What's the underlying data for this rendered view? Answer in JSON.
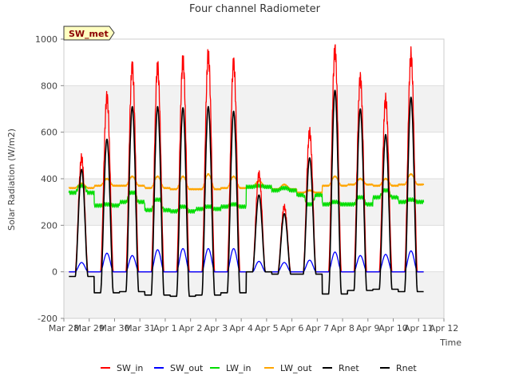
{
  "chart_data": {
    "type": "line",
    "title": "Four channel Radiometer",
    "xlabel": "Time",
    "ylabel": "Solar Radiation (W/m2)",
    "badge": "SW_met",
    "x_ticks": [
      "Mar 28",
      "Mar 29",
      "Mar 30",
      "Mar 31",
      "Apr 1",
      "Apr 2",
      "Apr 3",
      "Apr 4",
      "Apr 5",
      "Apr 6",
      "Apr 7",
      "Apr 8",
      "Apr 9",
      "Apr 10",
      "Apr 11",
      "Apr 12"
    ],
    "y_ticks": [
      -200,
      0,
      200,
      400,
      600,
      800,
      1000
    ],
    "xlim": [
      0,
      15
    ],
    "ylim": [
      -200,
      1000
    ],
    "grid": true,
    "legend_position": "bottom",
    "day_starts": [
      0.2,
      1.2,
      2.2,
      3.2,
      4.2,
      5.2,
      6.2,
      7.2,
      8.2,
      9.2,
      10.2,
      11.2,
      12.2,
      13.2
    ],
    "sw_in_peak": [
      490,
      750,
      880,
      880,
      905,
      930,
      895,
      420,
      280,
      600,
      950,
      830,
      740,
      930
    ],
    "sw_out_peak": [
      40,
      80,
      70,
      95,
      100,
      100,
      100,
      45,
      40,
      50,
      85,
      70,
      75,
      90
    ],
    "lw_in_day": [
      370,
      290,
      340,
      310,
      280,
      280,
      290,
      370,
      360,
      290,
      300,
      320,
      350,
      310
    ],
    "lw_in_night": [
      340,
      285,
      300,
      265,
      260,
      270,
      280,
      365,
      350,
      330,
      290,
      290,
      320,
      300
    ],
    "lw_out_day": [
      380,
      400,
      410,
      410,
      410,
      420,
      410,
      390,
      375,
      350,
      410,
      400,
      400,
      420
    ],
    "lw_out_night": [
      360,
      370,
      370,
      360,
      355,
      355,
      360,
      365,
      355,
      340,
      370,
      375,
      370,
      375
    ],
    "rnet_peak": [
      440,
      570,
      710,
      710,
      705,
      710,
      690,
      330,
      250,
      490,
      780,
      700,
      590,
      750
    ],
    "rnet_night": [
      -20,
      -90,
      -85,
      -100,
      -105,
      -100,
      -90,
      0,
      -10,
      -10,
      -95,
      -80,
      -75,
      -85
    ],
    "series": [
      {
        "name": "SW_in",
        "color": "#ff0000"
      },
      {
        "name": "SW_out",
        "color": "#0000ff"
      },
      {
        "name": "LW_in",
        "color": "#00dd00"
      },
      {
        "name": "LW_out",
        "color": "#ffa500"
      },
      {
        "name": "Rnet",
        "color": "#000000"
      },
      {
        "name": "Rnet",
        "color": "#000000"
      }
    ]
  }
}
